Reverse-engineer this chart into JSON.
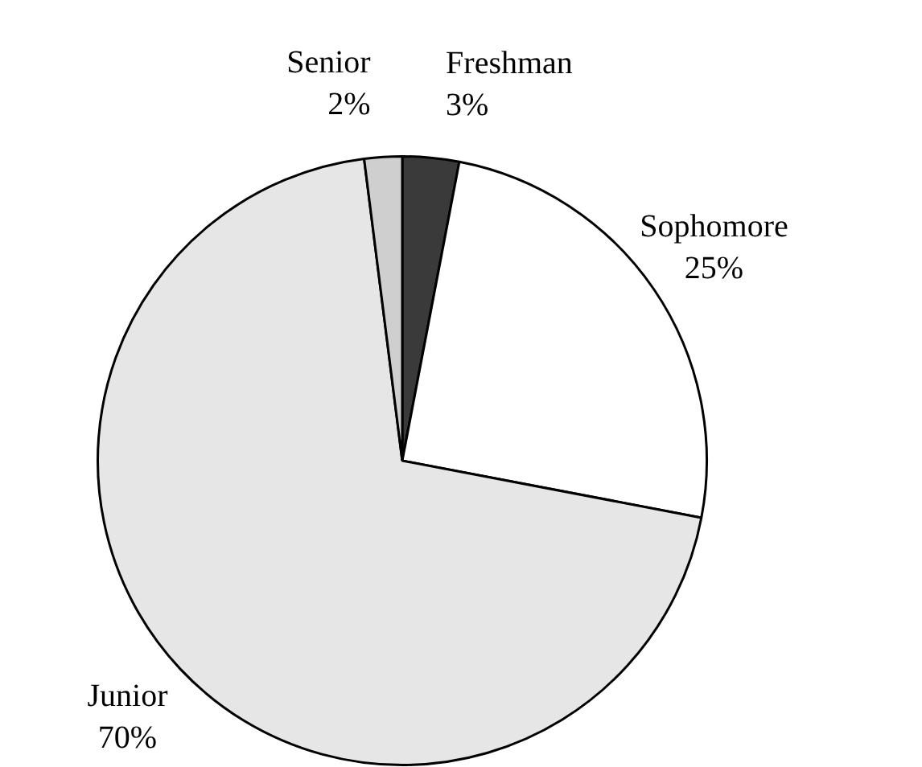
{
  "chart_data": {
    "type": "pie",
    "categories": [
      "Freshman",
      "Sophomore",
      "Junior",
      "Senior"
    ],
    "values": [
      3,
      25,
      70,
      2
    ],
    "colors": [
      "#3a3a3a",
      "#ffffff",
      "#e6e6e6",
      "#cfcfcf"
    ],
    "value_labels": [
      "3%",
      "25%",
      "70%",
      "2%"
    ],
    "legend": false
  }
}
